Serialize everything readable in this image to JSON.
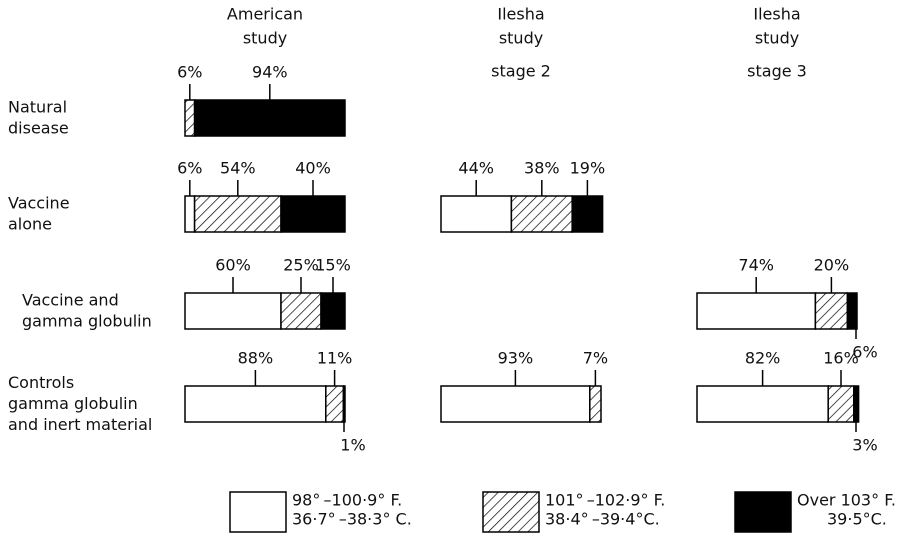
{
  "chart_data": {
    "type": "bar",
    "stacked": true,
    "orientation": "horizontal",
    "categories": [
      [
        "Natural",
        "disease"
      ],
      [
        "Vaccine",
        "alone"
      ],
      [
        "Vaccine and",
        "gamma globulin"
      ],
      [
        "Controls",
        "gamma globulin",
        "and inert material"
      ]
    ],
    "series": [
      {
        "name": [
          "98° –100·9° F.",
          "36·7° –38·3° C."
        ],
        "color": "#ffffff",
        "pattern": "none"
      },
      {
        "name": [
          "101° –102·9° F.",
          "38·4° –39·4°C."
        ],
        "color": "#ffffff",
        "pattern": "hatch"
      },
      {
        "name": [
          "Over 103° F.",
          "39·5°C."
        ],
        "color": "#000000",
        "pattern": "none"
      }
    ],
    "panels": [
      {
        "title": [
          "American",
          "study"
        ],
        "values": [
          [
            null,
            6,
            60,
            88
          ],
          [
            6,
            54,
            25,
            11
          ],
          [
            94,
            40,
            15,
            1
          ]
        ],
        "value_labels": [
          [
            null,
            "6%",
            "60%",
            "88%"
          ],
          [
            "6%",
            "54%",
            "25%",
            "11%"
          ],
          [
            "94%",
            "40%",
            "15%",
            "1%"
          ]
        ]
      },
      {
        "title": [
          "Ilesha",
          "study",
          "stage 2"
        ],
        "values": [
          [
            null,
            44,
            null,
            93
          ],
          [
            null,
            38,
            null,
            7
          ],
          [
            null,
            19,
            null,
            null
          ]
        ],
        "value_labels": [
          [
            null,
            "44%",
            null,
            "93%"
          ],
          [
            null,
            "38%",
            null,
            "7%"
          ],
          [
            null,
            "19%",
            null,
            null
          ]
        ]
      },
      {
        "title": [
          "Ilesha",
          "study",
          "stage 3"
        ],
        "values": [
          [
            null,
            null,
            74,
            82
          ],
          [
            null,
            null,
            20,
            16
          ],
          [
            null,
            null,
            6,
            3
          ]
        ],
        "value_labels": [
          [
            null,
            null,
            "74%",
            "82%"
          ],
          [
            null,
            null,
            "20%",
            "16%"
          ],
          [
            null,
            null,
            "6%",
            "3%"
          ]
        ]
      }
    ]
  }
}
